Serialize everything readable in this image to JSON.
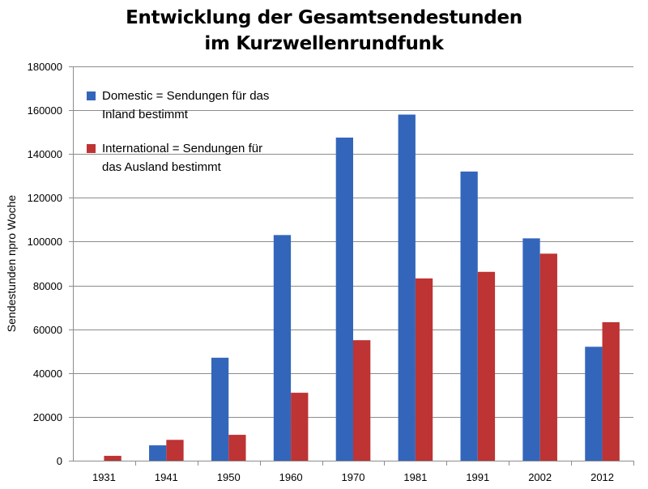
{
  "chart_data": {
    "type": "bar",
    "title_lines": [
      "Entwicklung der Gesamtsendestunden",
      "im Kurzwellenrundfunk"
    ],
    "xlabel": "",
    "ylabel": "Sendestunden npro Woche",
    "ylim": [
      0,
      180000
    ],
    "yticks": [
      0,
      20000,
      40000,
      60000,
      80000,
      100000,
      120000,
      140000,
      160000,
      180000
    ],
    "grid": true,
    "legend_position": "top-left",
    "categories": [
      "1931",
      "1941",
      "1950",
      "1960",
      "1970",
      "1981",
      "1991",
      "2002",
      "2012"
    ],
    "series": [
      {
        "name": "Domestic = Sendungen für das Inland bestimmt",
        "legend_lines": [
          "Domestic = Sendungen für das",
          "Inland bestimmt"
        ],
        "color": "#3366bb",
        "values": [
          0,
          7000,
          47000,
          103000,
          147500,
          158000,
          132000,
          101500,
          52000
        ]
      },
      {
        "name": "International = Sendungen für das Ausland bestimmt",
        "legend_lines": [
          "International = Sendungen für",
          "das Ausland bestimmt"
        ],
        "color": "#be3333",
        "values": [
          2200,
          9500,
          11800,
          31000,
          55000,
          83200,
          86200,
          94500,
          63200
        ]
      }
    ]
  }
}
